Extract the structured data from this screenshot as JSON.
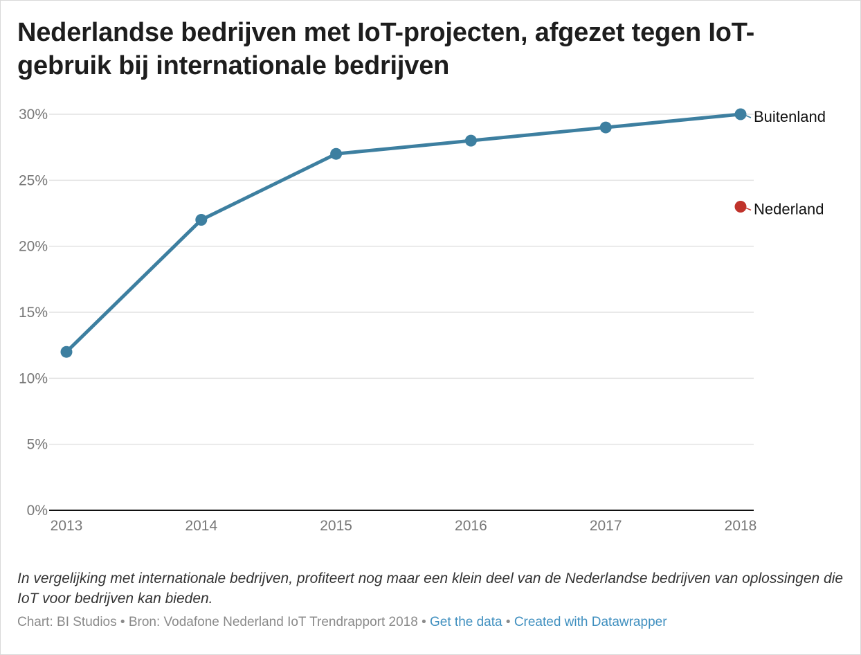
{
  "title": "Nederlandse bedrijven met IoT-projecten, afgezet tegen IoT-gebruik bij internationale bedrijven",
  "caption": "In vergelijking met internationale bedrijven, profiteert nog maar een klein deel van de Nederlandse bedrijven van oplossingen die IoT voor bedrijven kan bieden.",
  "footer": {
    "credit": "Chart: BI Studios",
    "separator": "•",
    "source": "Bron: Vodafone Nederland IoT Trendrapport 2018",
    "get_data": "Get the data",
    "created_with": "Created with Datawrapper"
  },
  "colors": {
    "buitenland": "#3d7fa0",
    "nederland": "#c0332b",
    "grid": "#e2e2e2",
    "axis": "#111111",
    "link": "#3f8fbf"
  },
  "chart_data": {
    "type": "line",
    "x": [
      "2013",
      "2014",
      "2015",
      "2016",
      "2017",
      "2018"
    ],
    "ylim": [
      0,
      30
    ],
    "yticks": [
      0,
      5,
      10,
      15,
      20,
      25,
      30
    ],
    "ytick_labels": [
      "0%",
      "5%",
      "10%",
      "15%",
      "20%",
      "25%",
      "30%"
    ],
    "grid": true,
    "series": [
      {
        "name": "Buitenland",
        "values": [
          12,
          22,
          27,
          28,
          29,
          30
        ]
      },
      {
        "name": "Nederland",
        "values": [
          null,
          null,
          null,
          null,
          null,
          23
        ]
      }
    ]
  }
}
